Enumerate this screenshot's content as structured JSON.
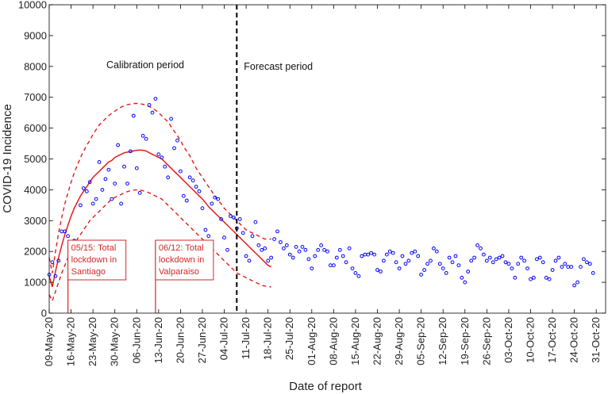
{
  "chart_data": {
    "type": "scatter",
    "title": "",
    "xlabel": "Date of report",
    "ylabel": "COVID-19 Incidence",
    "ylim": [
      0,
      10000
    ],
    "yticks": [
      0,
      1000,
      2000,
      3000,
      4000,
      5000,
      6000,
      7000,
      8000,
      9000,
      10000
    ],
    "xlim": [
      "2020-05-09",
      "2020-11-03"
    ],
    "xtick_labels": [
      "09-May-20",
      "16-May-20",
      "23-May-20",
      "30-May-20",
      "06-Jun-20",
      "13-Jun-20",
      "20-Jun-20",
      "27-Jun-20",
      "04-Jul-20",
      "11-Jul-20",
      "18-Jul-20",
      "25-Jul-20",
      "01-Aug-20",
      "08-Aug-20",
      "15-Aug-20",
      "22-Aug-20",
      "29-Aug-20",
      "05-Sep-20",
      "12-Sep-20",
      "19-Sep-20",
      "26-Sep-20",
      "03-Oct-20",
      "10-Oct-20",
      "17-Oct-20",
      "24-Oct-20",
      "31-Oct-20"
    ],
    "grid": false,
    "colors": {
      "observed": "#0000ff",
      "fit": "#e41a1c",
      "divider": "#000000",
      "annotation": "#d62728"
    },
    "calibration_end": "2020-07-08",
    "period_labels": {
      "calibration": "Calibration period",
      "forecast": "Forecast period"
    },
    "annotations": [
      {
        "date": "2020-05-15",
        "lines": [
          "05/15: Total",
          "lockdown in",
          "Santiago"
        ]
      },
      {
        "date": "2020-06-12",
        "lines": [
          "06/12: Total",
          "lockdown in",
          "Valparaiso"
        ]
      }
    ],
    "observed": {
      "start": "2020-05-09",
      "values": [
        1250,
        1650,
        1200,
        1700,
        2650,
        2650,
        2500,
        1900,
        2350,
        2300,
        3500,
        4050,
        3950,
        4250,
        3550,
        3700,
        4900,
        4000,
        4350,
        4650,
        3700,
        4200,
        5450,
        3550,
        4750,
        4200,
        5250,
        6400,
        4700,
        3900,
        5750,
        5650,
        6750,
        6500,
        6950,
        5150,
        5050,
        4750,
        4400,
        6300,
        5350,
        5600,
        4600,
        3800,
        3650,
        4400,
        4300,
        4100,
        3950,
        3400,
        2700,
        2500,
        3550,
        3750,
        3700,
        3050,
        2450,
        2050,
        3150,
        3100,
        2750,
        3050,
        2600,
        1850,
        1700,
        2500,
        2950,
        2200,
        2050,
        2100,
        1700,
        1800,
        2400,
        2650,
        2300,
        2100,
        2200,
        1900,
        1800,
        2150,
        2000,
        2150,
        2050,
        1750,
        1450,
        1850,
        2050,
        2200,
        2050,
        2000,
        1550,
        1550,
        1800,
        2050,
        1850,
        1650,
        2100,
        1450,
        1300,
        1200,
        1850,
        1900,
        1900,
        1950,
        1900,
        1400,
        1350,
        1700,
        1900,
        2000,
        1950,
        1650,
        1450,
        1850,
        1600,
        1700,
        1950,
        2000,
        1850,
        1250,
        1400,
        1600,
        1700,
        2100,
        2000,
        1600,
        1450,
        1300,
        1800,
        1650,
        1850,
        1550,
        1150,
        1000,
        1350,
        1700,
        1800,
        2200,
        2100,
        1900,
        1700,
        1800,
        1650,
        1750,
        1800,
        1850,
        1650,
        1600,
        1450,
        1150,
        1600,
        1800,
        1700,
        1450,
        1100,
        1150,
        1750,
        1800,
        1650,
        1150,
        1100,
        1400,
        1700,
        1800,
        1500,
        1600,
        1500,
        1500,
        900,
        1000,
        1500,
        1750,
        1650,
        1600,
        1300
      ]
    },
    "fit": {
      "start": "2020-05-09",
      "median": [
        1200,
        850,
        1350,
        1800,
        2200,
        2550,
        2850,
        3150,
        3400,
        3600,
        3800,
        3950,
        4100,
        4250,
        4400,
        4500,
        4600,
        4700,
        4800,
        4900,
        4950,
        5050,
        5100,
        5150,
        5200,
        5220,
        5240,
        5260,
        5280,
        5290,
        5280,
        5260,
        5200,
        5150,
        5100,
        5050,
        5000,
        4900,
        4800,
        4700,
        4600,
        4500,
        4400,
        4300,
        4200,
        4100,
        4000,
        3900,
        3800,
        3700,
        3580,
        3450,
        3350,
        3250,
        3150,
        3050,
        2950,
        2850,
        2750,
        2650,
        2550,
        2450,
        2350,
        2250,
        2150,
        2050,
        1950,
        1850,
        1750,
        1650,
        1550,
        1500
      ],
      "upper": [
        1800,
        1300,
        2000,
        2600,
        3100,
        3550,
        3900,
        4250,
        4550,
        4800,
        5050,
        5250,
        5450,
        5600,
        5800,
        5950,
        6100,
        6200,
        6300,
        6400,
        6480,
        6550,
        6620,
        6680,
        6720,
        6760,
        6780,
        6800,
        6800,
        6790,
        6770,
        6740,
        6700,
        6640,
        6580,
        6500,
        6400,
        6300,
        6200,
        6050,
        5900,
        5750,
        5600,
        5400,
        5250,
        5100,
        4900,
        4700,
        4550,
        4400,
        4250,
        4100,
        3950,
        3800,
        3650,
        3550,
        3400,
        3300,
        3200,
        3100,
        3000,
        2900,
        2800,
        2700,
        2650,
        2600,
        2550,
        2500,
        2450,
        2400,
        2400,
        2400
      ],
      "lower": [
        600,
        400,
        700,
        1000,
        1300,
        1550,
        1800,
        2000,
        2200,
        2400,
        2550,
        2700,
        2850,
        3000,
        3100,
        3200,
        3300,
        3400,
        3500,
        3600,
        3700,
        3750,
        3800,
        3850,
        3900,
        3940,
        3970,
        3990,
        4000,
        3990,
        3970,
        3940,
        3900,
        3850,
        3800,
        3750,
        3700,
        3600,
        3500,
        3400,
        3300,
        3200,
        3100,
        3000,
        2900,
        2800,
        2700,
        2600,
        2500,
        2400,
        2300,
        2200,
        2100,
        2000,
        1900,
        1800,
        1700,
        1600,
        1500,
        1400,
        1300,
        1250,
        1200,
        1150,
        1100,
        1050,
        1000,
        950,
        900,
        880,
        860,
        850
      ]
    }
  }
}
